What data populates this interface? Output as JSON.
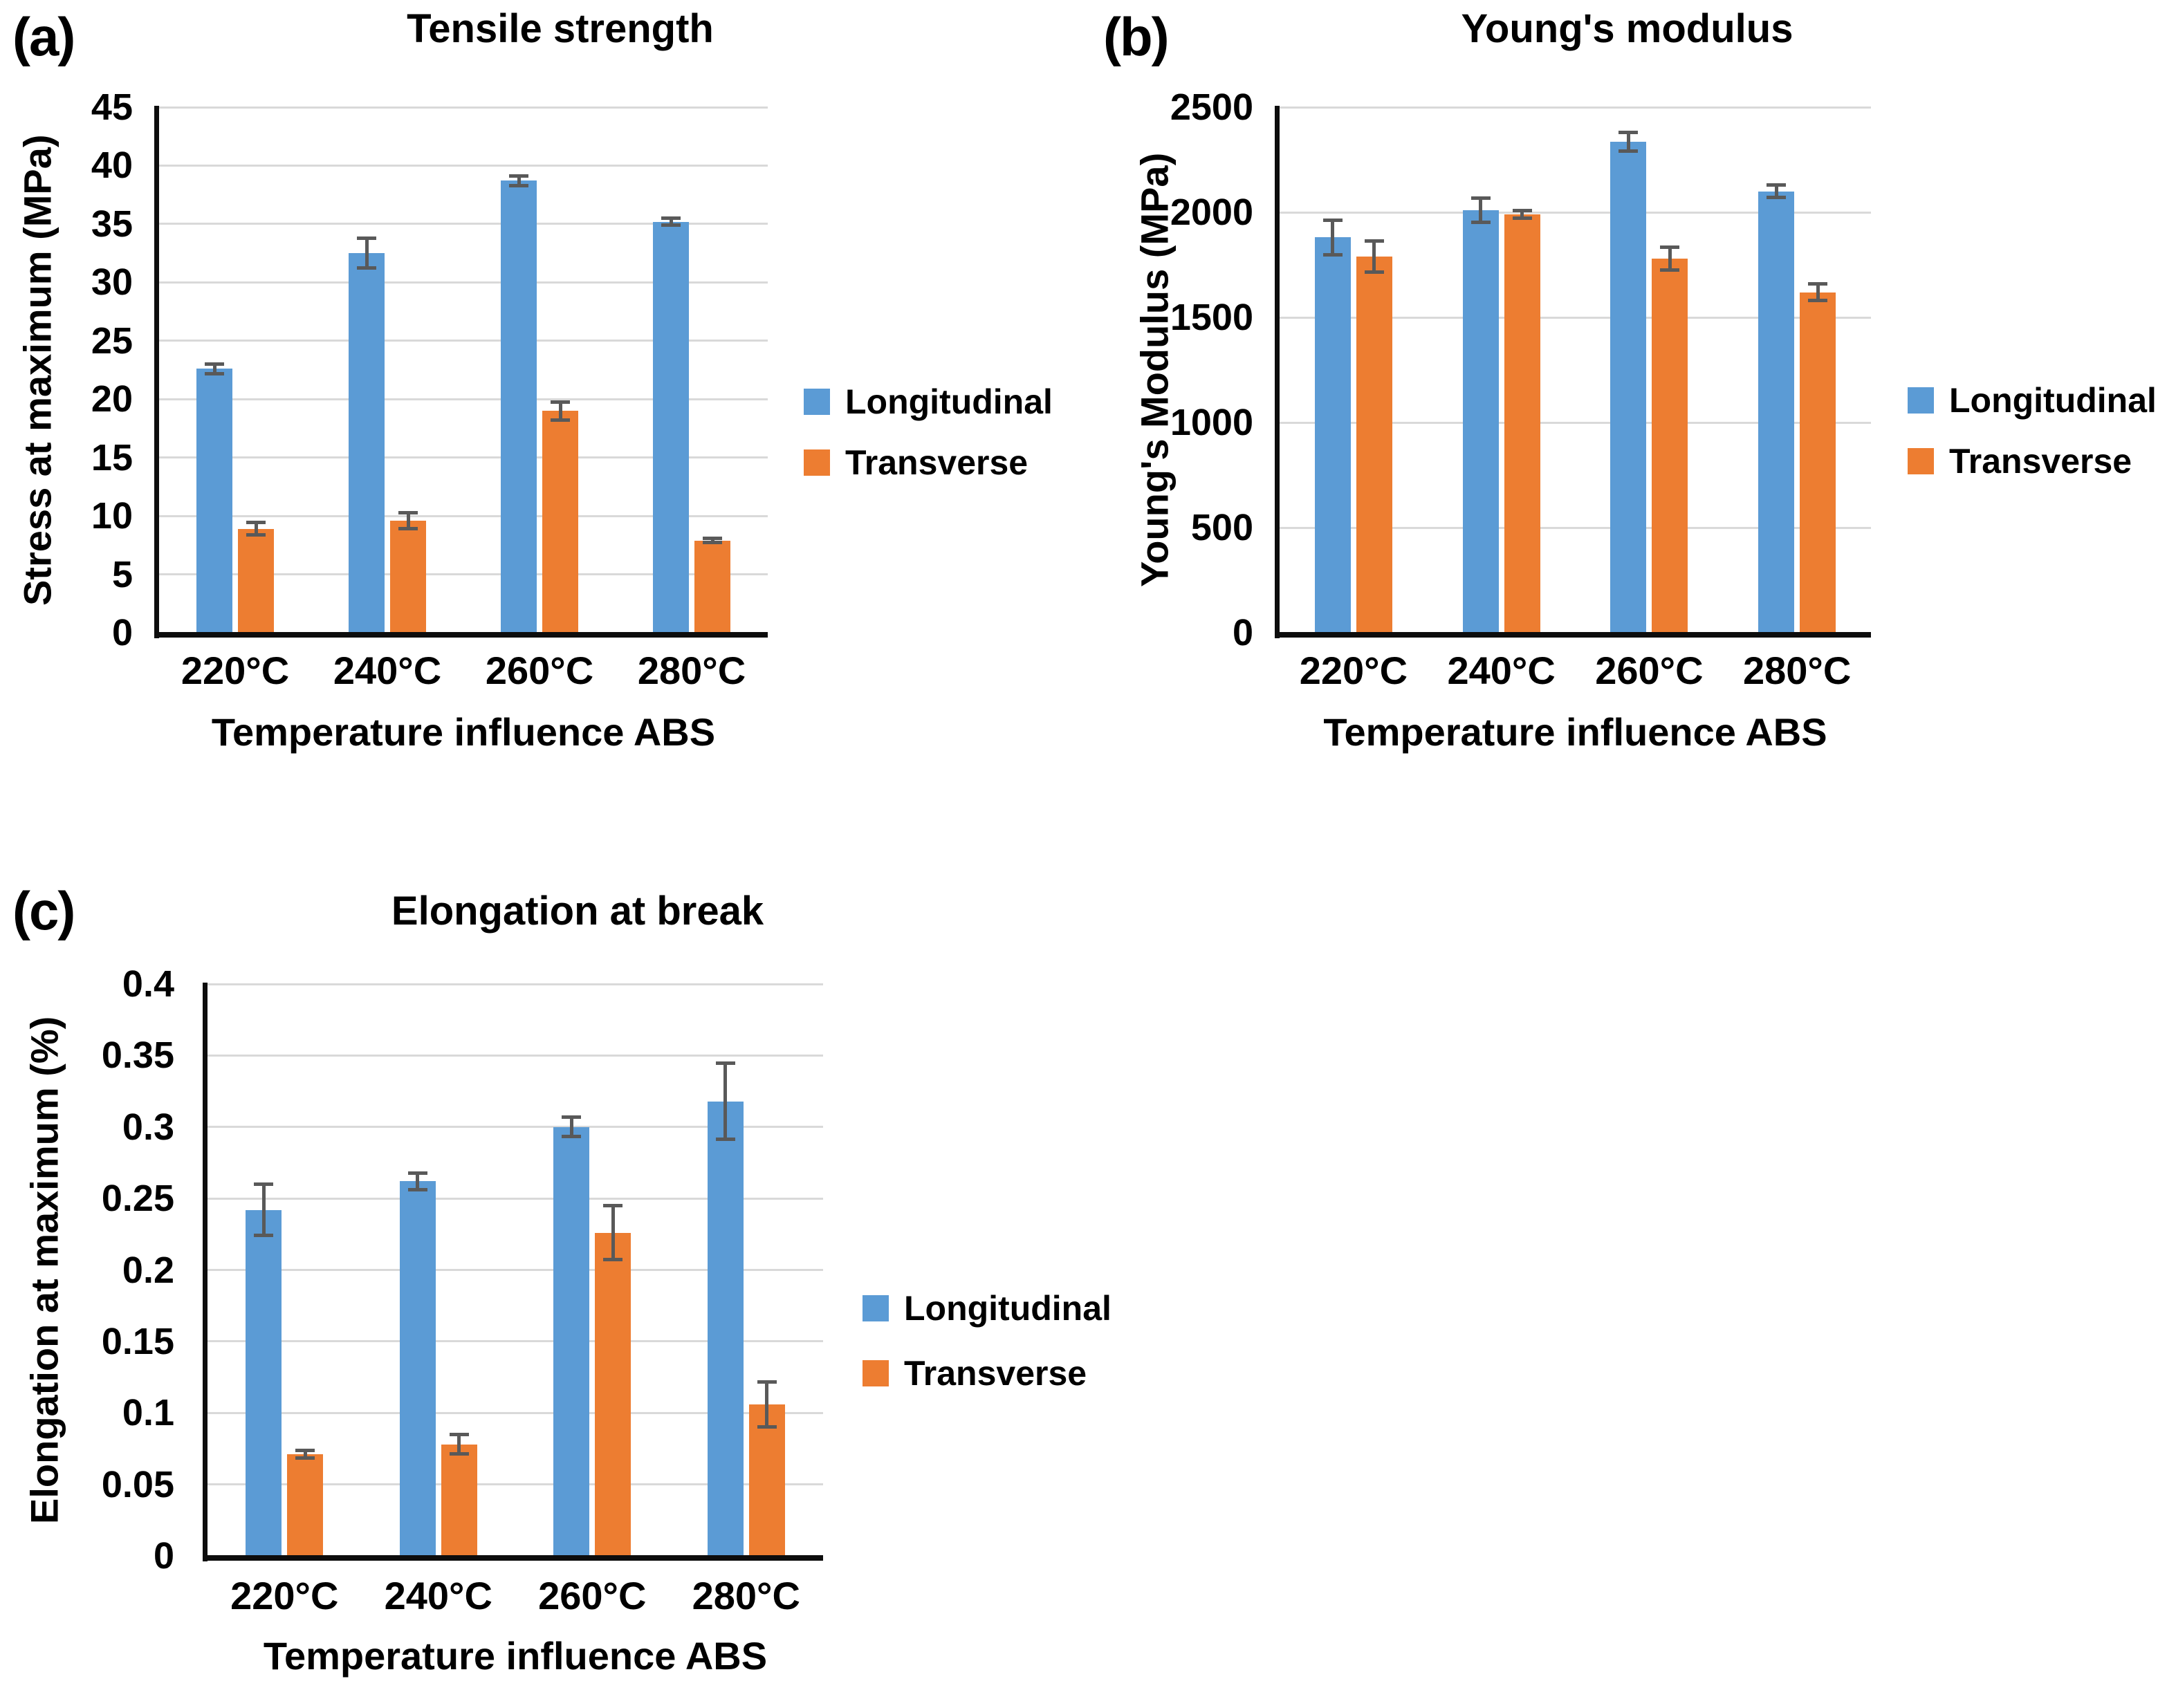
{
  "style": {
    "longitudinal_color": "#5B9BD5",
    "transverse_color": "#ED7D31",
    "error_bar_color": "#595959",
    "gridline_color": "#D9D9D9",
    "axis_color": "#0d0d0d",
    "background": "#ffffff"
  },
  "chart_data": [
    {
      "type": "bar",
      "panel_label": "(a)",
      "title": "Tensile strength",
      "ylabel": "Stress at maximum (MPa)",
      "xlabel": "Temperature influence ABS",
      "categories": [
        "220°C",
        "240°C",
        "260°C",
        "280°C"
      ],
      "ylim": [
        0,
        45
      ],
      "ystep": 5,
      "ytick_labels": [
        "45",
        "40",
        "35",
        "30",
        "25",
        "20",
        "15",
        "10",
        "5",
        "0"
      ],
      "grid": true,
      "legend_position": "right-middle",
      "series": [
        {
          "name": "Longitudinal",
          "color": "#5B9BD5",
          "values": [
            22.6,
            32.5,
            38.7,
            35.2
          ],
          "errors": [
            0.45,
            1.3,
            0.45,
            0.3
          ]
        },
        {
          "name": "Transverse",
          "color": "#ED7D31",
          "values": [
            8.9,
            9.6,
            19.0,
            7.9
          ],
          "errors": [
            0.55,
            0.7,
            0.8,
            0.2
          ]
        }
      ]
    },
    {
      "type": "bar",
      "panel_label": "(b)",
      "title": "Young's modulus",
      "ylabel": "Young's Modulus (MPa)",
      "xlabel": "Temperature influence ABS",
      "categories": [
        "220°C",
        "240°C",
        "260°C",
        "280°C"
      ],
      "ylim": [
        0,
        2500
      ],
      "ystep": 500,
      "ytick_labels": [
        "2500",
        "2000",
        "1500",
        "1000",
        "500",
        "0"
      ],
      "grid": true,
      "legend_position": "right-middle",
      "series": [
        {
          "name": "Longitudinal",
          "color": "#5B9BD5",
          "values": [
            1880,
            2010,
            2335,
            2100
          ],
          "errors": [
            85,
            60,
            45,
            30
          ]
        },
        {
          "name": "Transverse",
          "color": "#ED7D31",
          "values": [
            1790,
            1990,
            1780,
            1620
          ],
          "errors": [
            75,
            20,
            55,
            40
          ]
        }
      ]
    },
    {
      "type": "bar",
      "panel_label": "(c)",
      "title": "Elongation at break",
      "ylabel": "Elongation at maximum (%)",
      "xlabel": "Temperature influence ABS",
      "categories": [
        "220°C",
        "240°C",
        "260°C",
        "280°C"
      ],
      "ylim": [
        0,
        0.4
      ],
      "ystep": 0.05,
      "ytick_labels": [
        "0.4",
        "0.35",
        "0.3",
        "0.25",
        "0.2",
        "0.15",
        "0.1",
        "0.05",
        "0"
      ],
      "grid": true,
      "legend_position": "right-middle",
      "series": [
        {
          "name": "Longitudinal",
          "color": "#5B9BD5",
          "values": [
            0.242,
            0.262,
            0.3,
            0.318
          ],
          "errors": [
            0.018,
            0.006,
            0.007,
            0.027
          ]
        },
        {
          "name": "Transverse",
          "color": "#ED7D31",
          "values": [
            0.071,
            0.078,
            0.226,
            0.106
          ],
          "errors": [
            0.003,
            0.007,
            0.019,
            0.016
          ]
        }
      ]
    }
  ]
}
